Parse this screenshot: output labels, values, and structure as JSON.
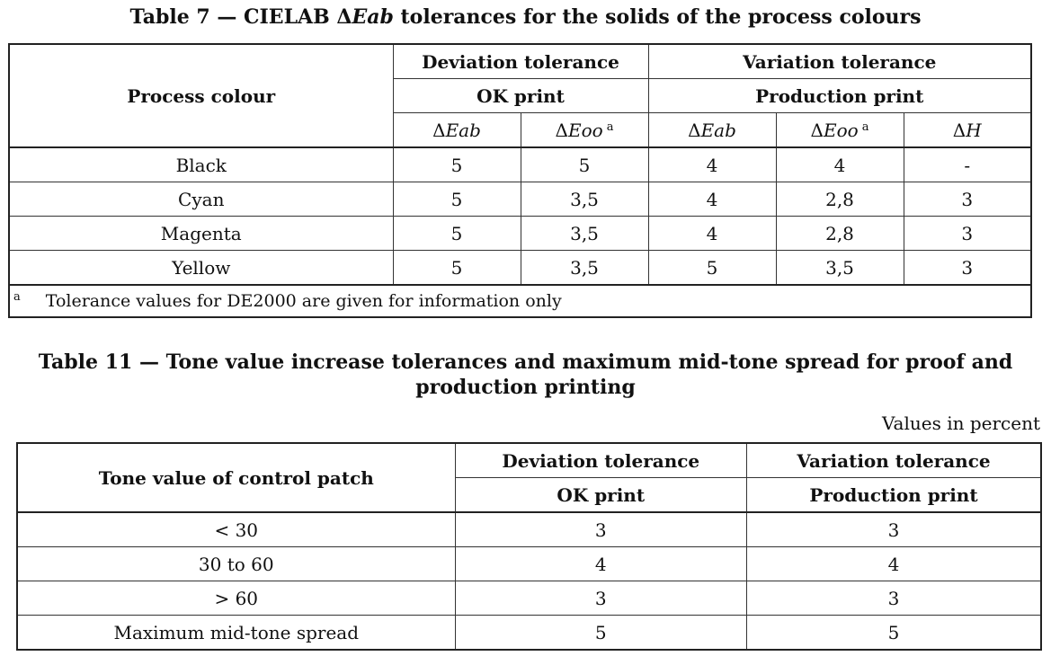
{
  "table7": {
    "caption": "Table 7 — CIELAB ΔEab tolerances for the solids of the process colours",
    "caption_prefix": "Table 7 — CIELAB Δ",
    "caption_italic": "Eab",
    "caption_suffix": " tolerances for the solids of the process colours",
    "headers": {
      "process_colour": "Process colour",
      "deviation_tolerance": "Deviation tolerance",
      "variation_tolerance": "Variation tolerance",
      "ok_print": "OK print",
      "production_print": "Production print",
      "delta": "Δ",
      "eab": "Eab",
      "eoo": "Eoo",
      "h": "H",
      "footnote_marker": "a"
    },
    "rows": [
      {
        "colour": "Black",
        "ok_eab": "5",
        "ok_eoo": "5",
        "prod_eab": "4",
        "prod_eoo": "4",
        "prod_h": "-"
      },
      {
        "colour": "Cyan",
        "ok_eab": "5",
        "ok_eoo": "3,5",
        "prod_eab": "4",
        "prod_eoo": "2,8",
        "prod_h": "3"
      },
      {
        "colour": "Magenta",
        "ok_eab": "5",
        "ok_eoo": "3,5",
        "prod_eab": "4",
        "prod_eoo": "2,8",
        "prod_h": "3"
      },
      {
        "colour": "Yellow",
        "ok_eab": "5",
        "ok_eoo": "3,5",
        "prod_eab": "5",
        "prod_eoo": "3,5",
        "prod_h": "3"
      }
    ],
    "footnote": {
      "marker": "a",
      "text": "Tolerance values for DE2000 are given for information only"
    }
  },
  "table11": {
    "caption_line1": "Table 11 — Tone value increase tolerances and maximum mid-tone spread for proof and",
    "caption_line2": "production printing",
    "unit_note": "Values in percent",
    "headers": {
      "tone_value": "Tone value of control patch",
      "deviation_tolerance": "Deviation tolerance",
      "variation_tolerance": "Variation tolerance",
      "ok_print": "OK print",
      "production_print": "Production print"
    },
    "rows": [
      {
        "tone": "< 30",
        "ok": "3",
        "prod": "3"
      },
      {
        "tone": "30 to 60",
        "ok": "4",
        "prod": "4"
      },
      {
        "tone": "> 60",
        "ok": "3",
        "prod": "3"
      },
      {
        "tone": "Maximum mid-tone spread",
        "ok": "5",
        "prod": "5"
      }
    ]
  }
}
